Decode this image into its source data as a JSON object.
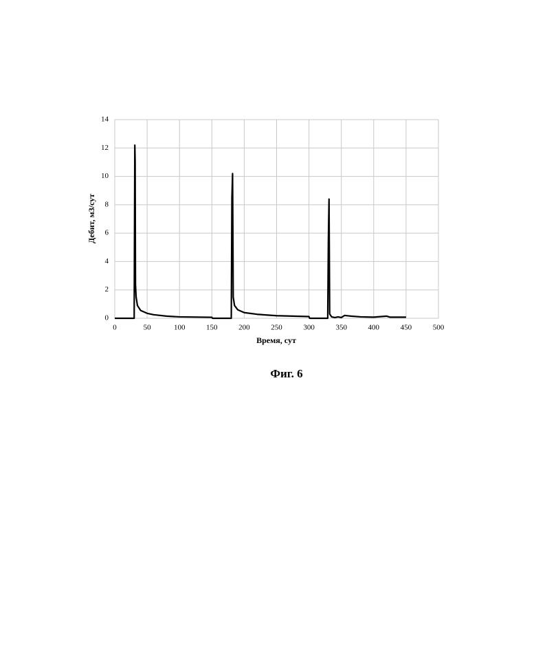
{
  "chart_data": {
    "type": "line",
    "caption": "Фиг. 6",
    "xlabel": "Время, сут",
    "ylabel": "Дебит, м3/сут",
    "x": [
      0,
      30,
      31,
      31.5,
      32,
      33,
      35,
      40,
      50,
      60,
      80,
      100,
      150,
      151,
      180,
      181,
      182,
      183,
      185,
      190,
      200,
      220,
      250,
      300,
      301,
      329,
      330,
      331,
      332,
      335,
      340,
      345,
      350,
      355,
      365,
      380,
      400,
      420,
      425,
      450
    ],
    "series": [
      {
        "color": "#000000",
        "values": [
          0,
          0,
          12.2,
          11,
          2.4,
          1.5,
          0.9,
          0.55,
          0.35,
          0.25,
          0.15,
          0.1,
          0.07,
          0,
          0,
          8.5,
          10.2,
          1.5,
          0.9,
          0.6,
          0.4,
          0.28,
          0.18,
          0.12,
          0,
          0,
          5.5,
          8.4,
          0.3,
          0.1,
          0.05,
          0.1,
          0.05,
          0.2,
          0.15,
          0.1,
          0.08,
          0.15,
          0.08,
          0.08
        ]
      }
    ],
    "xlim": [
      0,
      500
    ],
    "xticks": [
      0,
      50,
      100,
      150,
      200,
      250,
      300,
      350,
      400,
      450,
      500
    ],
    "ylim": [
      0,
      14
    ],
    "yticks": [
      0,
      2,
      4,
      6,
      8,
      10,
      12,
      14
    ],
    "grid": true
  }
}
